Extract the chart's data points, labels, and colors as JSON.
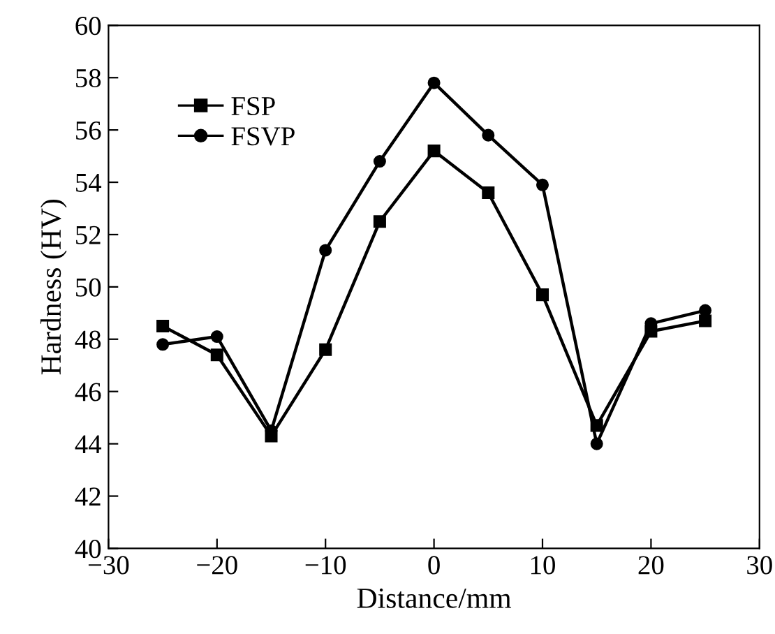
{
  "chart_data": {
    "type": "line",
    "xlabel": "Distance/mm",
    "ylabel": "Hardness (HV)",
    "x": [
      -25,
      -20,
      -15,
      -10,
      -5,
      0,
      5,
      10,
      15,
      20,
      25
    ],
    "series": [
      {
        "name": "FSP",
        "color": "#000000",
        "marker": "square",
        "values": [
          48.5,
          47.4,
          44.3,
          47.6,
          52.5,
          55.2,
          53.6,
          49.7,
          44.7,
          48.3,
          48.7
        ]
      },
      {
        "name": "FSVP",
        "color": "#000000",
        "marker": "circle",
        "values": [
          47.8,
          48.1,
          44.5,
          51.4,
          54.8,
          57.8,
          55.8,
          53.9,
          44.0,
          48.6,
          49.1
        ]
      }
    ],
    "xlim": [
      -30,
      30
    ],
    "xticks": [
      -30,
      -20,
      -10,
      0,
      10,
      20,
      30
    ],
    "ylim": [
      40,
      60
    ],
    "yticks": [
      40,
      42,
      44,
      46,
      48,
      50,
      52,
      54,
      56,
      58,
      60
    ],
    "grid": false,
    "legend": "top left",
    "line_style": "solid"
  }
}
